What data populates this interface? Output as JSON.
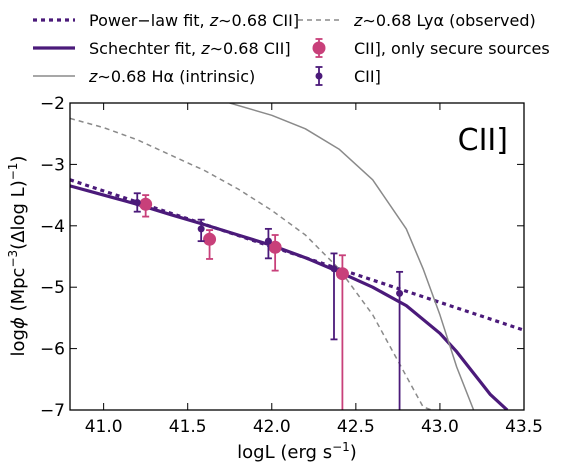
{
  "chart_data": {
    "type": "line",
    "annotation": "CII]",
    "xlabel": {
      "pre": "logL (erg s",
      "sup": "−1",
      "post": ")"
    },
    "ylabel": {
      "pre": "log",
      "phi": "ϕ",
      "mid": " (Mpc",
      "sup1": "−3",
      "mid2": "(Δlog L)",
      "sup2": "−1",
      "post": ")"
    },
    "xlim": [
      40.8,
      43.5
    ],
    "ylim": [
      -7,
      -2
    ],
    "xticks": [
      41.0,
      41.5,
      42.0,
      42.5,
      43.0,
      43.5
    ],
    "xtick_labels": [
      "41.0",
      "41.5",
      "42.0",
      "42.5",
      "43.0",
      "43.5"
    ],
    "yticks": [
      -7,
      -6,
      -5,
      -4,
      -3,
      -2
    ],
    "ytick_labels": [
      "−7",
      "−6",
      "−5",
      "−4",
      "−3",
      "−2"
    ],
    "grid": false,
    "legend_position": "top (above plot)",
    "series": [
      {
        "key": "powerlaw",
        "name": "Power−law fit, z∼0.68 CII]",
        "kind": "line",
        "style": "dotted",
        "color": "#4b1a7a",
        "x": [
          40.8,
          43.5
        ],
        "y": [
          -3.25,
          -5.7
        ]
      },
      {
        "key": "schechter",
        "name": "Schechter fit, z∼0.68 CII]",
        "kind": "line",
        "style": "solid",
        "color": "#4b1a7a",
        "x": [
          40.8,
          41.0,
          41.2,
          41.4,
          41.6,
          41.8,
          42.0,
          42.2,
          42.4,
          42.6,
          42.8,
          43.0,
          43.1,
          43.2,
          43.3,
          43.4
        ],
        "y": [
          -3.35,
          -3.5,
          -3.65,
          -3.82,
          -3.98,
          -4.15,
          -4.32,
          -4.52,
          -4.75,
          -5.0,
          -5.3,
          -5.75,
          -6.05,
          -6.4,
          -6.75,
          -7.0
        ]
      },
      {
        "key": "halpha",
        "name": "z∼0.68 Hα (intrinsic)",
        "kind": "line",
        "style": "solid",
        "color": "#8a8a8a",
        "x": [
          41.75,
          42.0,
          42.2,
          42.4,
          42.6,
          42.8,
          42.9,
          43.0,
          43.1,
          43.2
        ],
        "y": [
          -2.0,
          -2.2,
          -2.42,
          -2.75,
          -3.25,
          -4.05,
          -4.7,
          -5.45,
          -6.3,
          -7.0
        ]
      },
      {
        "key": "lya",
        "name": "z∼0.68 Lyα (observed)",
        "kind": "line",
        "style": "dashed",
        "color": "#8a8a8a",
        "x": [
          40.8,
          41.0,
          41.2,
          41.4,
          41.6,
          41.8,
          42.0,
          42.2,
          42.4,
          42.6,
          42.7,
          42.8,
          42.9,
          42.95
        ],
        "y": [
          -2.25,
          -2.4,
          -2.6,
          -2.85,
          -3.1,
          -3.4,
          -3.75,
          -4.15,
          -4.7,
          -5.45,
          -5.95,
          -6.45,
          -6.95,
          -7.0
        ]
      },
      {
        "key": "secure",
        "name": "CII], only secure sources",
        "kind": "points",
        "color": "#c8407a",
        "radius": 6.5,
        "x": [
          41.25,
          41.63,
          42.02,
          42.42
        ],
        "y": [
          -3.65,
          -4.22,
          -4.35,
          -4.78
        ],
        "yerr_low": [
          0.2,
          0.32,
          0.38,
          2.22
        ],
        "yerr_high": [
          0.15,
          0.15,
          0.2,
          0.3
        ]
      },
      {
        "key": "all",
        "name": "CII]",
        "kind": "points",
        "color": "#4b1a7a",
        "radius": 3.5,
        "x": [
          41.2,
          41.58,
          41.98,
          42.37,
          42.76
        ],
        "y": [
          -3.62,
          -4.05,
          -4.25,
          -4.7,
          -5.1
        ],
        "yerr_low": [
          0.15,
          0.2,
          0.28,
          1.15,
          1.9
        ],
        "yerr_high": [
          0.15,
          0.15,
          0.2,
          0.25,
          0.35
        ]
      }
    ],
    "legend": {
      "left": [
        {
          "series": "powerlaw",
          "pre": "Power−law fit, ",
          "math": "z",
          "post": "∼0.68 CII]"
        },
        {
          "series": "schechter",
          "pre": "Schechter fit, ",
          "math": "z",
          "post": "∼0.68 CII]"
        },
        {
          "series": "halpha",
          "pre": "",
          "math": "z",
          "post": "∼0.68 Hα (intrinsic)"
        }
      ],
      "right": [
        {
          "series": "lya",
          "pre": "",
          "math": "z",
          "post": "∼0.68 Lyα (observed)"
        },
        {
          "series": "secure",
          "pre": "CII], only secure sources",
          "math": "",
          "post": ""
        },
        {
          "series": "all",
          "pre": "CII]",
          "math": "",
          "post": ""
        }
      ]
    }
  }
}
